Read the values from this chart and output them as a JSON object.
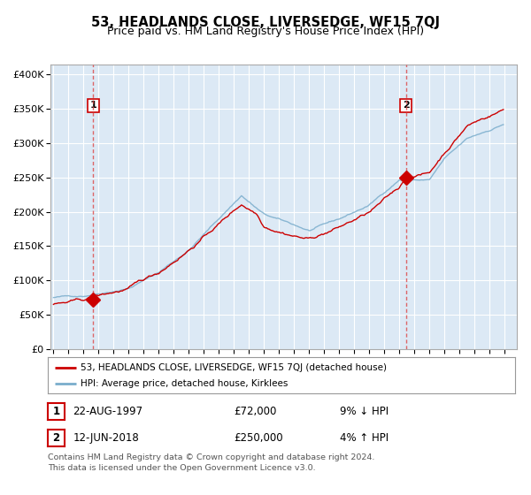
{
  "title": "53, HEADLANDS CLOSE, LIVERSEDGE, WF15 7QJ",
  "subtitle": "Price paid vs. HM Land Registry's House Price Index (HPI)",
  "title_fontsize": 10.5,
  "subtitle_fontsize": 9,
  "ylabel_ticks": [
    "£0",
    "£50K",
    "£100K",
    "£150K",
    "£200K",
    "£250K",
    "£300K",
    "£350K",
    "£400K"
  ],
  "ytick_values": [
    0,
    50000,
    100000,
    150000,
    200000,
    250000,
    300000,
    350000,
    400000
  ],
  "ylim": [
    0,
    415000
  ],
  "xlim_start": 1994.8,
  "xlim_end": 2025.8,
  "plot_bg_color": "#dce9f5",
  "grid_color": "#ffffff",
  "red_line_color": "#cc0000",
  "blue_line_color": "#7aadcc",
  "marker_color": "#cc0000",
  "vline_color": "#dd4444",
  "sale1_x": 1997.64,
  "sale1_y": 72000,
  "sale1_label": "1",
  "sale2_x": 2018.44,
  "sale2_y": 250000,
  "sale2_label": "2",
  "legend_label_red": "53, HEADLANDS CLOSE, LIVERSEDGE, WF15 7QJ (detached house)",
  "legend_label_blue": "HPI: Average price, detached house, Kirklees",
  "table_rows": [
    {
      "num": "1",
      "date": "22-AUG-1997",
      "price": "£72,000",
      "hpi": "9% ↓ HPI"
    },
    {
      "num": "2",
      "date": "12-JUN-2018",
      "price": "£250,000",
      "hpi": "4% ↑ HPI"
    }
  ],
  "footer": "Contains HM Land Registry data © Crown copyright and database right 2024.\nThis data is licensed under the Open Government Licence v3.0."
}
